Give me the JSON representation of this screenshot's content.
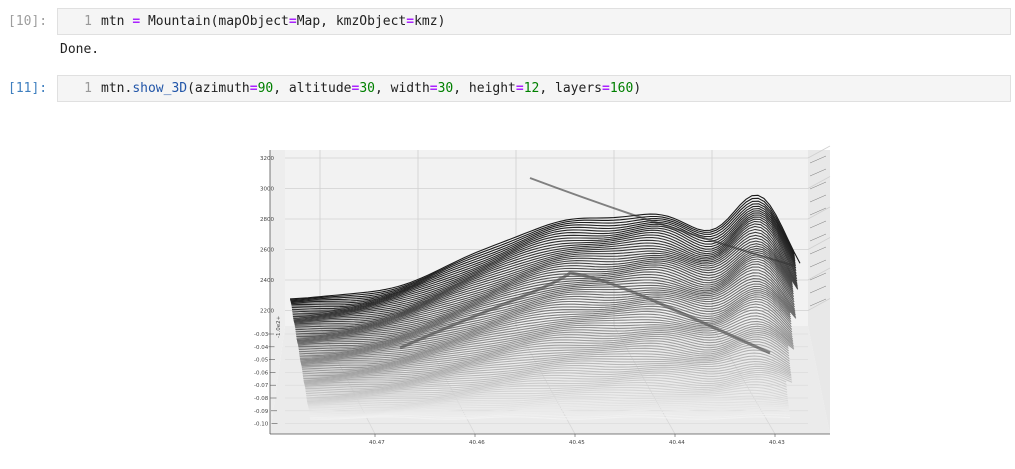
{
  "cells": [
    {
      "prompt": "[10]:",
      "line_no": "1",
      "tokens": [
        {
          "t": "mtn ",
          "c": "plain"
        },
        {
          "t": "=",
          "c": "op"
        },
        {
          "t": " Mountain(mapObject",
          "c": "plain"
        },
        {
          "t": "=",
          "c": "op"
        },
        {
          "t": "Map, kmzObject",
          "c": "plain"
        },
        {
          "t": "=",
          "c": "op"
        },
        {
          "t": "kmz)",
          "c": "plain"
        }
      ],
      "output": "Done."
    },
    {
      "prompt": "[11]:",
      "line_no": "1",
      "tokens": [
        {
          "t": "mtn.",
          "c": "plain"
        },
        {
          "t": "show_3D",
          "c": "fn"
        },
        {
          "t": "(azimuth",
          "c": "plain"
        },
        {
          "t": "=",
          "c": "op"
        },
        {
          "t": "90",
          "c": "num"
        },
        {
          "t": ", altitude",
          "c": "plain"
        },
        {
          "t": "=",
          "c": "op"
        },
        {
          "t": "30",
          "c": "num"
        },
        {
          "t": ", width",
          "c": "plain"
        },
        {
          "t": "=",
          "c": "op"
        },
        {
          "t": "30",
          "c": "num"
        },
        {
          "t": ", height",
          "c": "plain"
        },
        {
          "t": "=",
          "c": "op"
        },
        {
          "t": "12",
          "c": "num"
        },
        {
          "t": ", layers",
          "c": "plain"
        },
        {
          "t": "=",
          "c": "op"
        },
        {
          "t": "160",
          "c": "num"
        },
        {
          "t": ")",
          "c": "plain"
        }
      ]
    }
  ],
  "chart_data": {
    "type": "surface-3d-contour",
    "x_ticks": [
      "40.47",
      "40.46",
      "40.45",
      "40.44",
      "40.43"
    ],
    "z_ticks": [
      "3200",
      "3000",
      "2800",
      "2600",
      "2400",
      "2200"
    ],
    "y_ticks": [
      "-0.03",
      "-0.04",
      "-0.05",
      "-0.06",
      "-0.07",
      "-0.08",
      "-0.09",
      "-0.10"
    ],
    "y_label": "-1.0e2+",
    "colors": {
      "low": "#f2f2f2",
      "high": "#1a1a1a"
    },
    "layers": 160
  }
}
